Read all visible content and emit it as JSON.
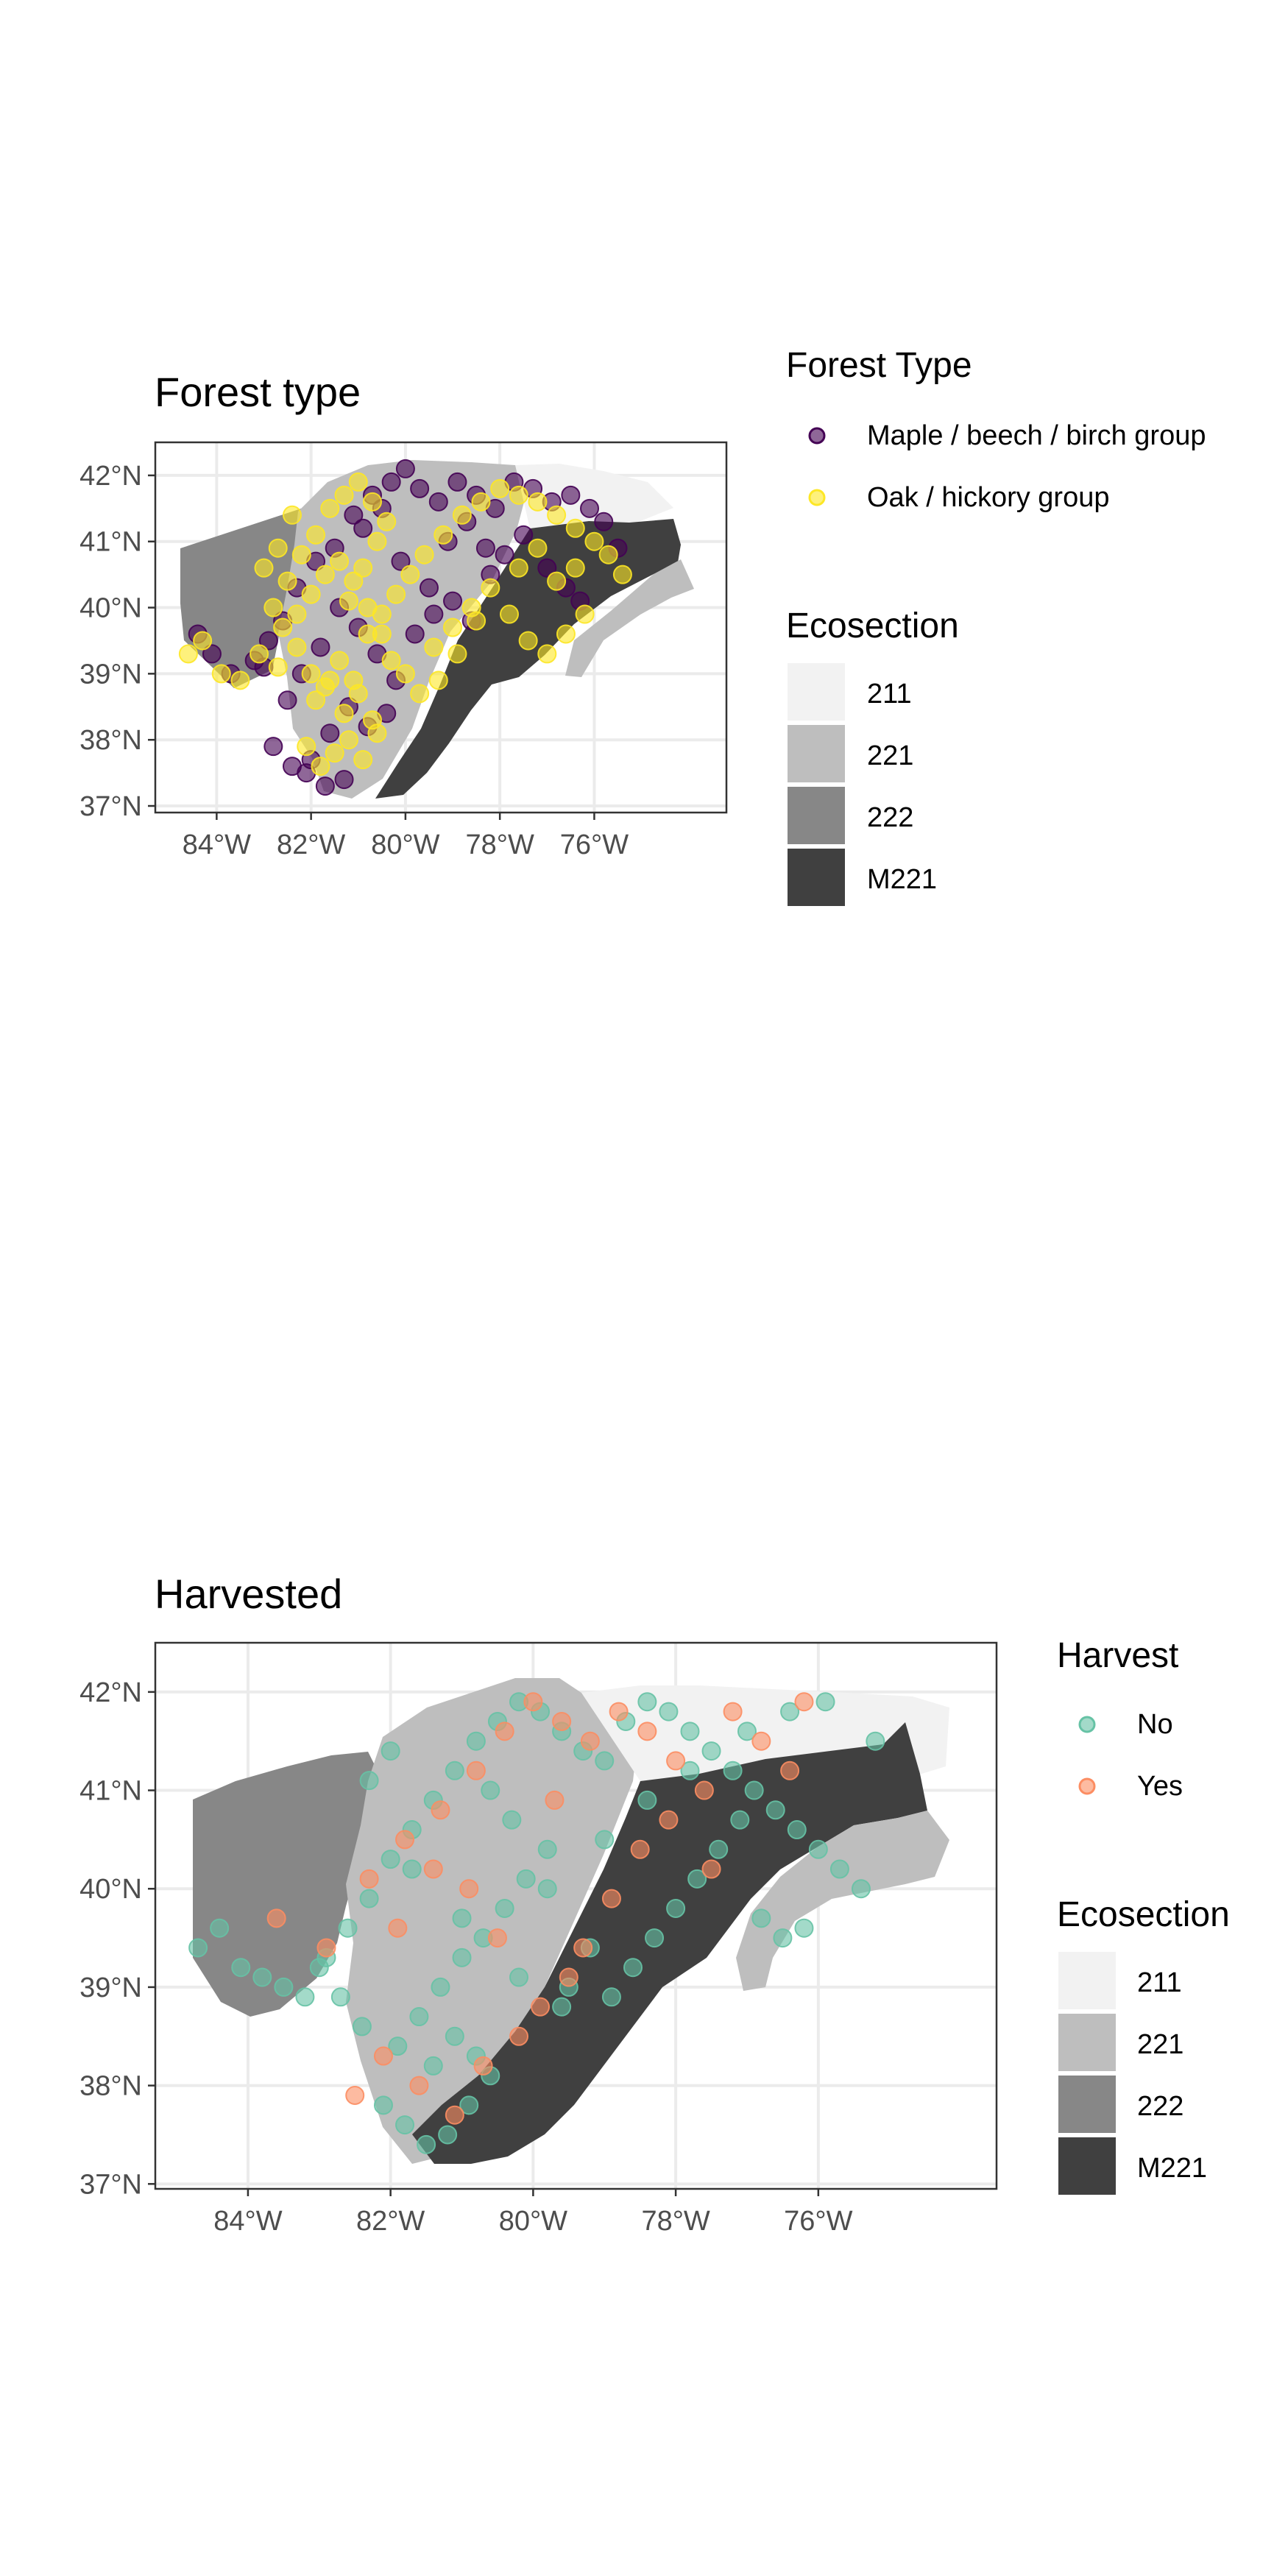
{
  "chart_data": [
    {
      "type": "scatter",
      "title": "Forest type",
      "xlabel": "",
      "ylabel": "",
      "xlim": [
        -85.3,
        -73.2
      ],
      "ylim": [
        36.9,
        42.5
      ],
      "x_ticks": [
        -84,
        -82,
        -80,
        -78,
        -76
      ],
      "x_tick_labels": [
        "84°W",
        "82°W",
        "80°W",
        "78°W",
        "76°W"
      ],
      "y_ticks": [
        37,
        38,
        39,
        40,
        41,
        42
      ],
      "y_tick_labels": [
        "37°N",
        "38°N",
        "39°N",
        "40°N",
        "41°N",
        "42°N"
      ],
      "grid": true,
      "legend_placement": "right",
      "point_legend": {
        "title": "Forest Type",
        "items": [
          {
            "label": "Maple / beech / birch group",
            "color": "#440154"
          },
          {
            "label": "Oak / hickory group",
            "color": "#FDE725"
          }
        ]
      },
      "area_legend": {
        "title": "Ecosection",
        "items": [
          {
            "label": "211",
            "color": "#F2F2F2"
          },
          {
            "label": "221",
            "color": "#BEBEBE"
          },
          {
            "label": "222",
            "color": "#878787"
          },
          {
            "label": "M221",
            "color": "#404040"
          }
        ]
      },
      "series": [
        {
          "name": "Maple / beech / birch group",
          "color": "#440154",
          "x": [
            -84.4,
            -84.1,
            -83.7,
            -83.2,
            -82.9,
            -82.6,
            -82.3,
            -81.9,
            -81.5,
            -81.1,
            -80.7,
            -80.3,
            -80.0,
            -79.7,
            -79.3,
            -78.9,
            -78.5,
            -78.1,
            -77.7,
            -77.3,
            -76.9,
            -76.5,
            -76.1,
            -75.8,
            -75.5,
            -80.4,
            -80.8,
            -81.2,
            -81.6,
            -82.0,
            -82.4,
            -82.8,
            -83.0,
            -80.2,
            -80.6,
            -81.0,
            -81.4,
            -81.8,
            -82.2,
            -79.5,
            -79.0,
            -78.6,
            -78.2,
            -77.9,
            -77.5,
            -77.0,
            -76.6,
            -76.3,
            -81.3,
            -81.7,
            -82.1,
            -82.5,
            -80.9,
            -80.5,
            -80.1,
            -79.8,
            -79.4,
            -79.1,
            -78.7,
            -78.3
          ],
          "y": [
            39.6,
            39.3,
            39.0,
            39.2,
            39.5,
            39.8,
            40.3,
            40.7,
            40.9,
            41.4,
            41.7,
            41.9,
            42.1,
            41.8,
            41.6,
            41.9,
            41.7,
            41.5,
            41.9,
            41.8,
            41.6,
            41.7,
            41.5,
            41.3,
            40.9,
            38.4,
            38.2,
            38.5,
            38.1,
            37.7,
            37.6,
            37.9,
            39.1,
            38.9,
            39.3,
            39.7,
            40.0,
            39.4,
            39.0,
            40.3,
            40.1,
            39.8,
            40.5,
            40.8,
            41.1,
            40.6,
            40.3,
            40.1,
            37.4,
            37.3,
            37.5,
            38.6,
            41.2,
            41.5,
            40.7,
            39.6,
            39.9,
            41.0,
            41.3,
            40.9
          ]
        },
        {
          "name": "Oak / hickory group",
          "color": "#FDE725",
          "x": [
            -84.6,
            -84.3,
            -83.9,
            -83.5,
            -83.1,
            -82.7,
            -82.3,
            -82.0,
            -81.7,
            -81.4,
            -81.1,
            -80.8,
            -80.5,
            -80.2,
            -79.9,
            -79.6,
            -79.2,
            -78.8,
            -78.4,
            -78.0,
            -77.6,
            -77.2,
            -76.8,
            -76.4,
            -76.0,
            -75.7,
            -75.4,
            -82.8,
            -82.5,
            -82.2,
            -81.9,
            -81.6,
            -81.3,
            -81.0,
            -80.7,
            -80.4,
            -82.6,
            -82.3,
            -82.0,
            -81.7,
            -81.4,
            -81.1,
            -80.8,
            -80.5,
            -81.9,
            -81.6,
            -81.3,
            -81.0,
            -80.7,
            -82.1,
            -81.8,
            -81.5,
            -81.2,
            -80.9,
            -80.6,
            -79.4,
            -79.0,
            -78.6,
            -78.2,
            -77.8,
            -77.4,
            -77.0,
            -76.6,
            -76.2,
            -77.6,
            -77.2,
            -76.8,
            -76.4,
            -80.3,
            -80.0,
            -79.7,
            -79.3,
            -78.9,
            -78.5,
            -81.2,
            -80.9,
            -80.6,
            -82.4,
            -82.7,
            -83.0
          ],
          "y": [
            39.3,
            39.5,
            39.0,
            38.9,
            39.3,
            39.1,
            39.4,
            39.0,
            38.8,
            39.2,
            38.9,
            39.6,
            39.9,
            40.2,
            40.5,
            40.8,
            41.1,
            41.4,
            41.6,
            41.8,
            41.7,
            41.6,
            41.4,
            41.2,
            41.0,
            40.8,
            40.5,
            40.0,
            40.4,
            40.8,
            41.1,
            41.5,
            41.7,
            41.9,
            41.6,
            41.3,
            39.7,
            39.9,
            40.2,
            40.5,
            40.7,
            40.4,
            40.0,
            39.6,
            38.6,
            38.9,
            38.4,
            38.7,
            38.3,
            37.9,
            37.6,
            37.8,
            38.0,
            37.7,
            38.1,
            39.4,
            39.7,
            40.0,
            40.3,
            39.9,
            39.5,
            39.3,
            39.6,
            39.9,
            40.6,
            40.9,
            40.4,
            40.6,
            39.2,
            39.0,
            38.7,
            38.9,
            39.3,
            39.8,
            40.1,
            40.6,
            41.0,
            41.4,
            40.9,
            40.6
          ]
        }
      ]
    },
    {
      "type": "scatter",
      "title": "Harvested",
      "xlabel": "",
      "ylabel": "",
      "xlim": [
        -85.3,
        -73.5
      ],
      "ylim": [
        36.95,
        42.5
      ],
      "x_ticks": [
        -84,
        -82,
        -80,
        -78,
        -76
      ],
      "x_tick_labels": [
        "84°W",
        "82°W",
        "80°W",
        "78°W",
        "76°W"
      ],
      "y_ticks": [
        37,
        38,
        39,
        40,
        41,
        42
      ],
      "y_tick_labels": [
        "37°N",
        "38°N",
        "39°N",
        "40°N",
        "41°N",
        "42°N"
      ],
      "grid": true,
      "legend_placement": "right",
      "point_legend": {
        "title": "Harvest",
        "items": [
          {
            "label": "No",
            "color": "#66C2A5"
          },
          {
            "label": "Yes",
            "color": "#FC8D62"
          }
        ]
      },
      "area_legend": {
        "title": "Ecosection",
        "items": [
          {
            "label": "211",
            "color": "#F2F2F2"
          },
          {
            "label": "221",
            "color": "#BEBEBE"
          },
          {
            "label": "222",
            "color": "#878787"
          },
          {
            "label": "M221",
            "color": "#404040"
          }
        ]
      },
      "series": [
        {
          "name": "No",
          "color": "#66C2A5",
          "x": [
            -84.7,
            -84.4,
            -84.1,
            -83.8,
            -83.5,
            -83.2,
            -82.9,
            -82.6,
            -82.3,
            -82.0,
            -81.7,
            -81.4,
            -81.1,
            -80.8,
            -80.5,
            -80.2,
            -79.9,
            -79.6,
            -79.3,
            -79.0,
            -78.7,
            -78.4,
            -78.1,
            -77.8,
            -77.5,
            -77.2,
            -76.9,
            -76.6,
            -76.3,
            -76.0,
            -75.7,
            -75.4,
            -75.2,
            -82.1,
            -81.8,
            -81.5,
            -81.2,
            -80.9,
            -80.6,
            -81.9,
            -81.6,
            -81.3,
            -81.0,
            -80.7,
            -80.4,
            -80.1,
            -79.8,
            -82.4,
            -82.7,
            -83.0,
            -81.4,
            -81.1,
            -80.8,
            -78.9,
            -78.6,
            -78.3,
            -78.0,
            -77.7,
            -77.4,
            -77.1,
            -76.8,
            -76.5,
            -76.2,
            -79.5,
            -79.2,
            -79.8,
            -80.3,
            -80.6,
            -82.0,
            -82.3,
            -81.7,
            -81.0,
            -80.2,
            -79.6,
            -79.0,
            -78.4,
            -77.8,
            -77.0,
            -76.4,
            -75.9
          ],
          "y": [
            39.4,
            39.6,
            39.2,
            39.1,
            39.0,
            38.9,
            39.3,
            39.6,
            39.9,
            40.3,
            40.6,
            40.9,
            41.2,
            41.5,
            41.7,
            41.9,
            41.8,
            41.6,
            41.4,
            41.3,
            41.7,
            41.9,
            41.8,
            41.6,
            41.4,
            41.2,
            41.0,
            40.8,
            40.6,
            40.4,
            40.2,
            40.0,
            41.5,
            37.8,
            37.6,
            37.4,
            37.5,
            37.8,
            38.1,
            38.4,
            38.7,
            39.0,
            39.3,
            39.5,
            39.8,
            40.1,
            40.4,
            38.6,
            38.9,
            39.2,
            38.2,
            38.5,
            38.3,
            38.9,
            39.2,
            39.5,
            39.8,
            40.1,
            40.4,
            40.7,
            39.7,
            39.5,
            39.6,
            39.0,
            39.4,
            40.0,
            40.7,
            41.0,
            41.4,
            41.1,
            40.2,
            39.7,
            39.1,
            38.8,
            40.5,
            40.9,
            41.2,
            41.6,
            41.8,
            41.9
          ]
        },
        {
          "name": "Yes",
          "color": "#FC8D62",
          "x": [
            -83.6,
            -82.9,
            -82.3,
            -81.8,
            -81.3,
            -80.8,
            -80.4,
            -80.0,
            -79.6,
            -79.2,
            -78.8,
            -78.4,
            -78.0,
            -77.6,
            -77.2,
            -76.8,
            -76.4,
            -80.2,
            -79.9,
            -79.5,
            -82.1,
            -81.6,
            -81.1,
            -80.7,
            -79.3,
            -78.9,
            -78.5,
            -80.5,
            -81.9,
            -81.4,
            -82.5,
            -80.9,
            -79.7,
            -78.1,
            -77.5,
            -76.2
          ],
          "y": [
            39.7,
            39.4,
            40.1,
            40.5,
            40.8,
            41.2,
            41.6,
            41.9,
            41.7,
            41.5,
            41.8,
            41.6,
            41.3,
            41.0,
            41.8,
            41.5,
            41.2,
            38.5,
            38.8,
            39.1,
            38.3,
            38.0,
            37.7,
            38.2,
            39.4,
            39.9,
            40.4,
            39.5,
            39.6,
            40.2,
            37.9,
            40.0,
            40.9,
            40.7,
            40.2,
            41.9
          ]
        }
      ]
    }
  ]
}
